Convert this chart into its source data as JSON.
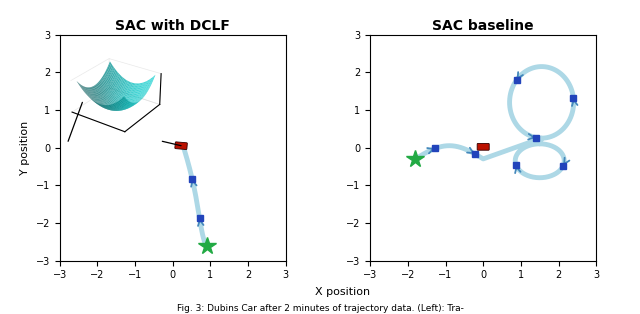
{
  "title_left": "SAC with DCLF",
  "title_right": "SAC baseline",
  "xlabel": "X position",
  "ylabel": "Y position",
  "xlim": [
    -3,
    3
  ],
  "ylim": [
    -3,
    3
  ],
  "traj_color": "#add8e6",
  "arrow_color": "#4488bb",
  "car_color": "#bb1100",
  "start_color": "#22aa44",
  "waypoint_color": "#2244bb",
  "background_color": "#ffffff",
  "caption": "Fig. 3: Dubins Car after 2 minutes of trajectory data. (Left): Tra-",
  "title_fontsize": 10,
  "label_fontsize": 8,
  "tick_fontsize": 7,
  "inset_color": "#00cccc"
}
